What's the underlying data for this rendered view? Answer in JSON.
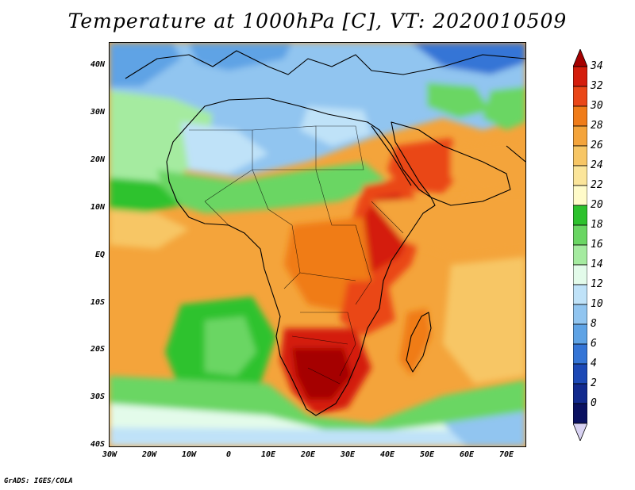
{
  "title": "Temperature at 1000hPa [C], VT: 2020010509",
  "credit": "GrADS: IGES/COLA",
  "map": {
    "region": "Africa",
    "lon_range": [
      -30,
      75
    ],
    "lat_range": [
      -40,
      45
    ],
    "lat_labels": [
      "40N",
      "30N",
      "20N",
      "10N",
      "EQ",
      "10S",
      "20S",
      "30S",
      "40S"
    ],
    "lon_labels": [
      "30W",
      "20W",
      "10W",
      "0",
      "10E",
      "20E",
      "30E",
      "40E",
      "50E",
      "60E",
      "70E"
    ]
  },
  "colorbar": {
    "labels": [
      "34",
      "32",
      "30",
      "28",
      "26",
      "24",
      "22",
      "20",
      "18",
      "16",
      "14",
      "12",
      "10",
      "8",
      "6",
      "4",
      "2",
      "0"
    ],
    "colors": [
      "#a50000",
      "#d41d0c",
      "#ea4718",
      "#f07c19",
      "#f4a43b",
      "#f7c665",
      "#fbe59a",
      "#fffbc9",
      "#2dc22d",
      "#6ad663",
      "#a5eba0",
      "#e3fbea",
      "#bfe2f8",
      "#91c5f0",
      "#5fa3e5",
      "#3575d6",
      "#1c49b6",
      "#122a8e",
      "#0a1161",
      "#d8d2f2"
    ]
  }
}
